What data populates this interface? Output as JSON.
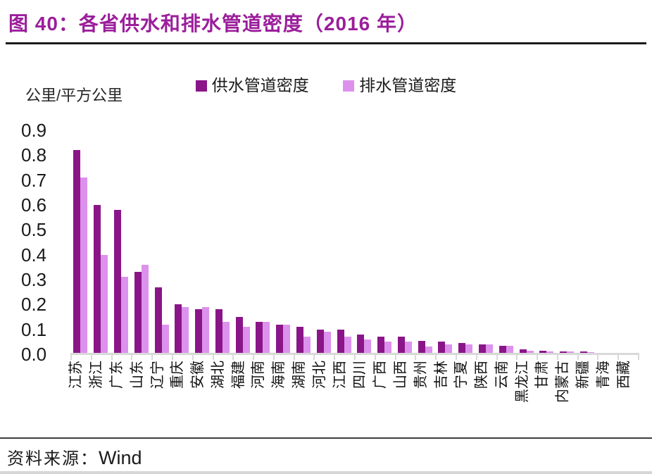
{
  "figure": {
    "title": "图 40：各省供水和排水管道密度（2016 年）"
  },
  "chart_data": {
    "type": "bar",
    "title": "各省供水和排水管道密度（2016 年）",
    "unit_label": "公里/平方公里",
    "categories": [
      "江苏",
      "浙江",
      "广东",
      "山东",
      "辽宁",
      "重庆",
      "安徽",
      "湖北",
      "福建",
      "河南",
      "海南",
      "湖南",
      "河北",
      "江西",
      "四川",
      "广西",
      "山西",
      "贵州",
      "吉林",
      "宁夏",
      "陕西",
      "云南",
      "黑龙江",
      "甘肃",
      "内蒙古",
      "新疆",
      "青海",
      "西藏"
    ],
    "series": [
      {
        "name": "供水管道密度",
        "color": "#8A1588",
        "values": [
          0.82,
          0.6,
          0.58,
          0.33,
          0.27,
          0.2,
          0.18,
          0.18,
          0.15,
          0.13,
          0.12,
          0.11,
          0.1,
          0.1,
          0.08,
          0.07,
          0.07,
          0.055,
          0.05,
          0.045,
          0.04,
          0.035,
          0.02,
          0.015,
          0.012,
          0.01,
          0.006,
          0.004
        ]
      },
      {
        "name": "排水管道密度",
        "color": "#DC92EC",
        "values": [
          0.71,
          0.4,
          0.31,
          0.36,
          0.12,
          0.19,
          0.19,
          0.13,
          0.11,
          0.13,
          0.12,
          0.07,
          0.09,
          0.07,
          0.06,
          0.05,
          0.05,
          0.03,
          0.04,
          0.04,
          0.04,
          0.035,
          0.015,
          0.012,
          0.01,
          0.008,
          0.005,
          0.003
        ]
      }
    ],
    "ylim": [
      0,
      0.9
    ],
    "ytick_step": 0.1,
    "ytick_labels": [
      "0.0",
      "0.1",
      "0.2",
      "0.3",
      "0.4",
      "0.5",
      "0.6",
      "0.7",
      "0.8",
      "0.9"
    ],
    "grid": false,
    "legend_position": "top",
    "xlabel_rotation": -90
  },
  "footer": {
    "source_label": "资料来源：",
    "source_value": "Wind"
  }
}
